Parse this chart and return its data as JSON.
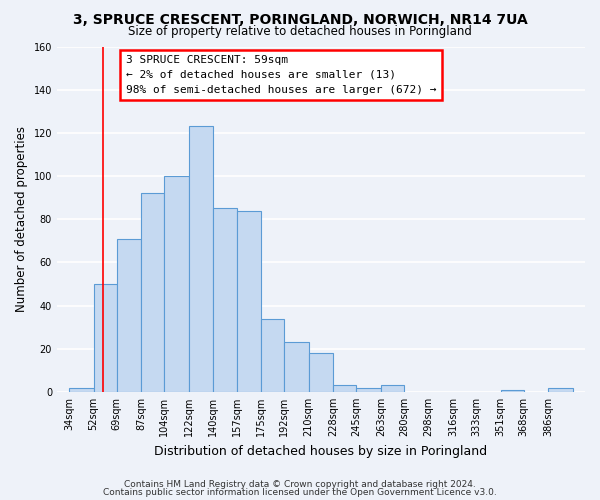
{
  "title": "3, SPRUCE CRESCENT, PORINGLAND, NORWICH, NR14 7UA",
  "subtitle": "Size of property relative to detached houses in Poringland",
  "xlabel": "Distribution of detached houses by size in Poringland",
  "ylabel": "Number of detached properties",
  "bar_color": "#c5d9f1",
  "bar_edge_color": "#5b9bd5",
  "background_color": "#eef2f9",
  "grid_color": "white",
  "bin_labels": [
    "34sqm",
    "52sqm",
    "69sqm",
    "87sqm",
    "104sqm",
    "122sqm",
    "140sqm",
    "157sqm",
    "175sqm",
    "192sqm",
    "210sqm",
    "228sqm",
    "245sqm",
    "263sqm",
    "280sqm",
    "298sqm",
    "316sqm",
    "333sqm",
    "351sqm",
    "368sqm",
    "386sqm"
  ],
  "values": [
    2,
    50,
    71,
    92,
    100,
    123,
    85,
    84,
    34,
    23,
    18,
    3,
    2,
    3,
    0,
    0,
    0,
    0,
    1,
    0,
    2
  ],
  "ylim": [
    0,
    160
  ],
  "yticks": [
    0,
    20,
    40,
    60,
    80,
    100,
    120,
    140,
    160
  ],
  "bin_edges_sqm": [
    34,
    52,
    69,
    87,
    104,
    122,
    140,
    157,
    175,
    192,
    210,
    228,
    245,
    263,
    280,
    298,
    316,
    333,
    351,
    368,
    386,
    404
  ],
  "red_line_x": 59,
  "annotation_title": "3 SPRUCE CRESCENT: 59sqm",
  "annotation_line1": "← 2% of detached houses are smaller (13)",
  "annotation_line2": "98% of semi-detached houses are larger (672) →",
  "footer1": "Contains HM Land Registry data © Crown copyright and database right 2024.",
  "footer2": "Contains public sector information licensed under the Open Government Licence v3.0."
}
